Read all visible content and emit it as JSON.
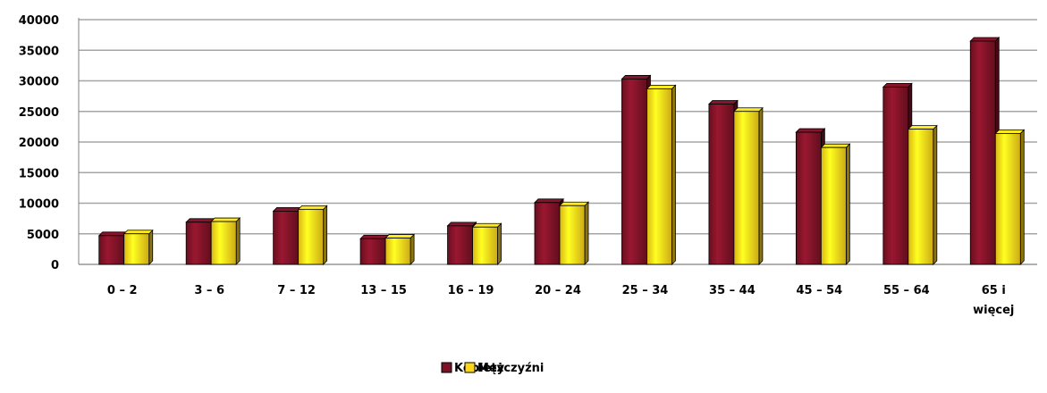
{
  "chart_data": {
    "type": "bar",
    "categories": [
      [
        "0 – 2"
      ],
      [
        "3 – 6"
      ],
      [
        "7 – 12"
      ],
      [
        "13 – 15"
      ],
      [
        "16 – 19"
      ],
      [
        "20 – 24"
      ],
      [
        "25 – 34"
      ],
      [
        "35 – 44"
      ],
      [
        "45 – 54"
      ],
      [
        "55 – 64"
      ],
      [
        "65 i",
        "więcej"
      ]
    ],
    "series": [
      {
        "name": "Kobiety",
        "color": "#7b1226",
        "values": [
          4700,
          6900,
          8700,
          4200,
          6300,
          10100,
          30300,
          26200,
          21600,
          29000,
          36500
        ]
      },
      {
        "name": "Mężczyźni",
        "color": "#ffd51a",
        "values": [
          5000,
          7000,
          9000,
          4300,
          6100,
          9600,
          28700,
          25000,
          19100,
          22100,
          21400
        ]
      }
    ],
    "yticks": [
      "0",
      "5000",
      "10000",
      "15000",
      "20000",
      "25000",
      "30000",
      "35000",
      "40000"
    ],
    "ylim": [
      0,
      40000
    ],
    "grid": true,
    "legend": "bottom",
    "style": "3d-bars"
  }
}
